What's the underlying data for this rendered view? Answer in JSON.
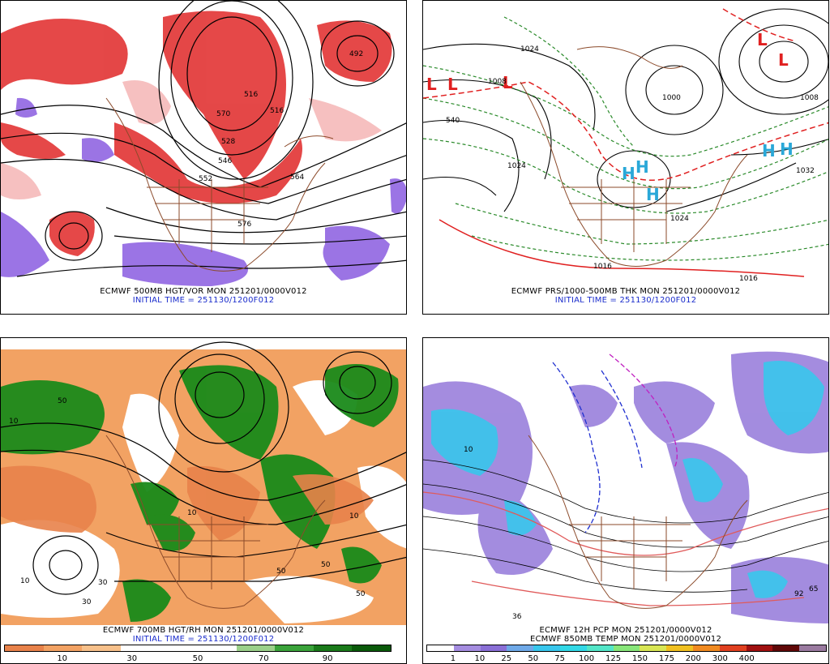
{
  "panels": [
    {
      "title": "ECMWF 500MB HGT/VOR MON 251201/0000V012",
      "init": "INITIAL TIME = 251130/1200F012",
      "labels": [
        "528",
        "546",
        "552",
        "564",
        "516",
        "570",
        "576",
        "492",
        "516"
      ]
    },
    {
      "title": "ECMWF PRS/1000-500MB THK MON 251201/0000V012",
      "init": "INITIAL TIME = 251130/1200F012",
      "labels": [
        "1024",
        "1008",
        "1024",
        "1000",
        "1008",
        "1032",
        "1024",
        "1016",
        "1016",
        "540"
      ],
      "symbols": [
        "L",
        "L",
        "L",
        "L",
        "L",
        "H",
        "H",
        "H",
        "H",
        "H"
      ]
    },
    {
      "title": "ECMWF 700MB HGT/RH MON 251201/0000V012",
      "init": "INITIAL TIME = 251130/1200F012",
      "labels": [
        "10",
        "50",
        "10",
        "30",
        "10",
        "50",
        "10",
        "50",
        "30",
        "50"
      ],
      "colorbar": {
        "colors": [
          "#e8824a",
          "#f2a263",
          "#f7c08a",
          "#ffffff",
          "#ffffff",
          "#ffffff",
          "#9bd08a",
          "#3aa33a",
          "#1a7a1a",
          "#0a5a0a"
        ],
        "ticks": [
          "10",
          "30",
          "50",
          "70",
          "90"
        ]
      }
    },
    {
      "title": "ECMWF 12H PCP MON 251201/0000V012",
      "subtitle": "ECMWF 850MB TEMP MON 251201/0000V012",
      "labels": [
        "36",
        "92",
        "65",
        "10"
      ],
      "colorbar": {
        "colors": [
          "#ffffff",
          "#a58de0",
          "#8a6fd6",
          "#6fa9e8",
          "#38c6ec",
          "#32d8e6",
          "#53e6c8",
          "#88e67a",
          "#d8e654",
          "#f0c020",
          "#f08a20",
          "#e04020",
          "#a01010",
          "#600808",
          "#9a7aa0"
        ],
        "ticks": [
          "1",
          "10",
          "25",
          "50",
          "75",
          "100",
          "125",
          "150",
          "175",
          "200",
          "300",
          "400"
        ]
      }
    }
  ],
  "colors": {
    "vorticity": "#e02828",
    "vorticity_neg": "#8a5ce0",
    "low_symbol": "#e02020",
    "high_symbol": "#2aa8d8",
    "thickness": "#2a8a2a",
    "coast": "#8b4a2a",
    "rh_dry": "#f0a060",
    "rh_moist": "#1a8a1a",
    "precip": "#9a80dc"
  }
}
